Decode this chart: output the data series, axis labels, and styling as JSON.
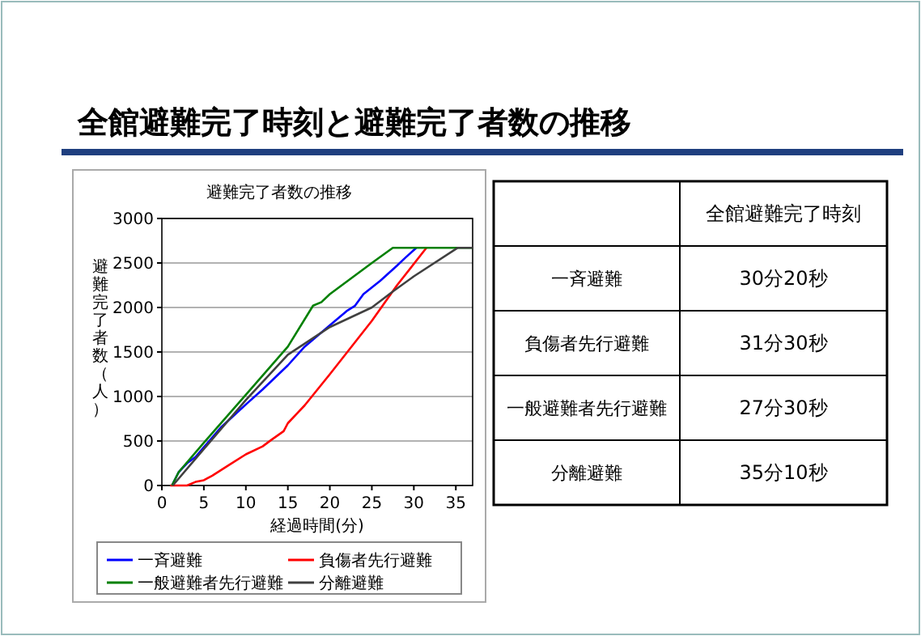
{
  "chart_data": [
    {
      "type": "other",
      "title": "全館避難完了時刻と避難完了者数の推移"
    },
    {
      "type": "line",
      "title": "避難完了者数の推移",
      "xlabel": "経過時間(分)",
      "ylabel": "避難完了者数（人）",
      "xlim": [
        0,
        37
      ],
      "xticks": [
        0,
        5,
        10,
        15,
        20,
        25,
        30,
        35
      ],
      "ylim": [
        0,
        3000
      ],
      "yticks": [
        0,
        500,
        1000,
        1500,
        2000,
        2500,
        3000
      ],
      "grid": "y",
      "legend": "bottom",
      "series": [
        {
          "name": "一斉避難",
          "color": "#0000ff",
          "x": [
            1.2,
            2,
            3,
            4,
            5,
            7,
            10,
            12,
            15,
            17,
            20,
            22,
            23,
            24,
            26,
            28,
            29,
            30.3
          ],
          "values": [
            0,
            150,
            250,
            320,
            430,
            650,
            910,
            1080,
            1350,
            1560,
            1800,
            1960,
            2020,
            2150,
            2300,
            2470,
            2560,
            2670
          ]
        },
        {
          "name": "負傷者先行避難",
          "color": "#ff0000",
          "x": [
            1,
            3,
            4,
            5,
            6,
            8,
            10,
            12,
            13,
            14.5,
            15,
            17,
            20,
            25,
            28,
            31.5
          ],
          "values": [
            0,
            0,
            40,
            60,
            110,
            230,
            350,
            440,
            510,
            610,
            700,
            900,
            1250,
            1850,
            2250,
            2670
          ]
        },
        {
          "name": "一般避難者先行避難",
          "color": "#008000",
          "x": [
            1.2,
            2,
            5,
            10,
            15,
            18,
            19,
            20,
            25,
            27.5,
            37
          ],
          "values": [
            0,
            150,
            480,
            1020,
            1560,
            2020,
            2060,
            2150,
            2500,
            2670,
            2670
          ]
        },
        {
          "name": "分離避難",
          "color": "#404040",
          "x": [
            1.3,
            5,
            10,
            15,
            20,
            25,
            27.5,
            30,
            35.2,
            37
          ],
          "values": [
            0,
            410,
            960,
            1470,
            1780,
            2000,
            2180,
            2350,
            2670,
            2670
          ]
        }
      ]
    },
    {
      "type": "other",
      "annotations": [
        "全館避難完了時刻",
        "一斉避難",
        "30分20秒",
        "負傷者先行避難",
        "31分30秒",
        "一般避難者先行避難",
        "27分30秒",
        "分離避難",
        "35分10秒"
      ]
    }
  ]
}
